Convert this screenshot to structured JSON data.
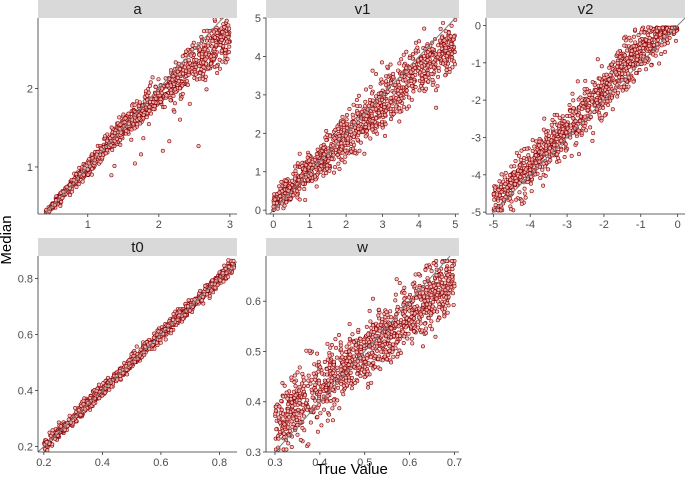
{
  "figure": {
    "xlabel": "True Value",
    "ylabel": "Median"
  },
  "colors": {
    "point_stroke": "#8b0000",
    "point_fill": "#f2b8b8",
    "strip_bg": "#d9d9d9",
    "identity_line": "#7f7f7f",
    "axis": "#333333"
  },
  "chart_data": [
    {
      "type": "scatter",
      "title": "a",
      "xlim": [
        0.3,
        3.1
      ],
      "ylim": [
        0.4,
        2.9
      ],
      "xticks": [
        1,
        2,
        3
      ],
      "yticks": [
        1,
        2
      ],
      "x_min": 0.4,
      "x_max": 3.0,
      "n_points": 1100,
      "pattern": "identity line to about 1.5, then medians bend below the line and spread widens; near 3 the medians lie between about 2.0 and 2.8",
      "identity_line": true
    },
    {
      "type": "scatter",
      "title": "v1",
      "xlim": [
        -0.2,
        5.1
      ],
      "ylim": [
        -0.1,
        5.0
      ],
      "xticks": [
        0,
        1,
        2,
        3,
        4,
        5
      ],
      "yticks": [
        0,
        1,
        2,
        3,
        4,
        5
      ],
      "x_min": 0.0,
      "x_max": 5.0,
      "n_points": 1100,
      "pattern": "medians cluster near 0.1 to 0.4 for true values below 0.5, then rise roughly linearly with wide spread, reaching about 4.5 near 5",
      "identity_line": true
    },
    {
      "type": "scatter",
      "title": "v2",
      "xlim": [
        -5.2,
        0.2
      ],
      "ylim": [
        -5.05,
        0.2
      ],
      "xticks": [
        -5,
        -4,
        -3,
        -2,
        -1,
        0
      ],
      "yticks": [
        -5,
        -4,
        -3,
        -2,
        -1,
        0
      ],
      "x_min": -5.0,
      "x_max": 0.0,
      "n_points": 1100,
      "pattern": "medians near -4.5 around -5, close to the identity line with moderate spread, approaching about -0.3 near 0",
      "identity_line": true
    },
    {
      "type": "scatter",
      "title": "t0",
      "xlim": [
        0.18,
        0.86
      ],
      "ylim": [
        0.18,
        0.88
      ],
      "xticks": [
        0.2,
        0.4,
        0.6,
        0.8
      ],
      "yticks": [
        0.2,
        0.4,
        0.6,
        0.8
      ],
      "x_min": 0.2,
      "x_max": 0.85,
      "n_points": 1100,
      "pattern": "tightly along the identity line with very small spread",
      "identity_line": true
    },
    {
      "type": "scatter",
      "title": "w",
      "xlim": [
        0.28,
        0.71
      ],
      "ylim": [
        0.3,
        0.69
      ],
      "xticks": [
        0.3,
        0.4,
        0.5,
        0.6,
        0.7
      ],
      "yticks": [
        0.3,
        0.4,
        0.5,
        0.6
      ],
      "x_min": 0.3,
      "x_max": 0.7,
      "n_points": 1100,
      "pattern": "slightly shrunk toward 0.5: medians near 0.36 at 0.3 and near 0.64 at 0.7, wide band",
      "identity_line": true
    }
  ]
}
